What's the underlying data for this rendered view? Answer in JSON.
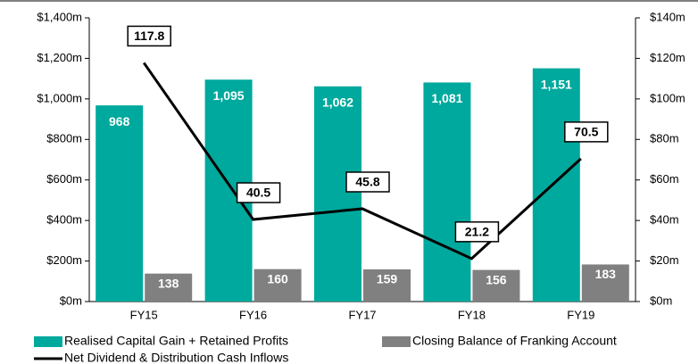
{
  "chart_data": {
    "type": "bar_line",
    "categories": [
      "FY15",
      "FY16",
      "FY17",
      "FY18",
      "FY19"
    ],
    "series": [
      {
        "name": "Realised Capital Gain + Retained Profits",
        "color": "#00a99d",
        "values": [
          968,
          1095,
          1062,
          1081,
          1151
        ],
        "value_labels": [
          "968",
          "1,095",
          "1,062",
          "1,081",
          "1,151"
        ]
      },
      {
        "name": "Closing Balance of Franking Account",
        "color": "#808080",
        "values": [
          138,
          160,
          159,
          156,
          183
        ]
      },
      {
        "name": "Net Dividend & Distribution Cash Inflows",
        "color": "#000000",
        "axis": "y2",
        "type": "line",
        "values": [
          117.8,
          40.5,
          45.8,
          21.2,
          70.5
        ]
      }
    ],
    "ylim": [
      0,
      1400
    ],
    "yticks": [
      {
        "value": 0,
        "label": "$0m"
      },
      {
        "value": 200,
        "label": "$200m"
      },
      {
        "value": 400,
        "label": "$400m"
      },
      {
        "value": 600,
        "label": "$600m"
      },
      {
        "value": 800,
        "label": "$800m"
      },
      {
        "value": 1000,
        "label": "$1,000m"
      },
      {
        "value": 1200,
        "label": "$1,200m"
      },
      {
        "value": 1400,
        "label": "$1,400m"
      }
    ],
    "y2lim": [
      0,
      140
    ],
    "y2ticks": [
      {
        "value": 0,
        "label": "$0m"
      },
      {
        "value": 20,
        "label": "$20m"
      },
      {
        "value": 40,
        "label": "$40m"
      },
      {
        "value": 60,
        "label": "$60m"
      },
      {
        "value": 80,
        "label": "$80m"
      },
      {
        "value": 100,
        "label": "$100m"
      },
      {
        "value": 120,
        "label": "$120m"
      },
      {
        "value": 140,
        "label": "$140m"
      }
    ],
    "grid": false
  }
}
